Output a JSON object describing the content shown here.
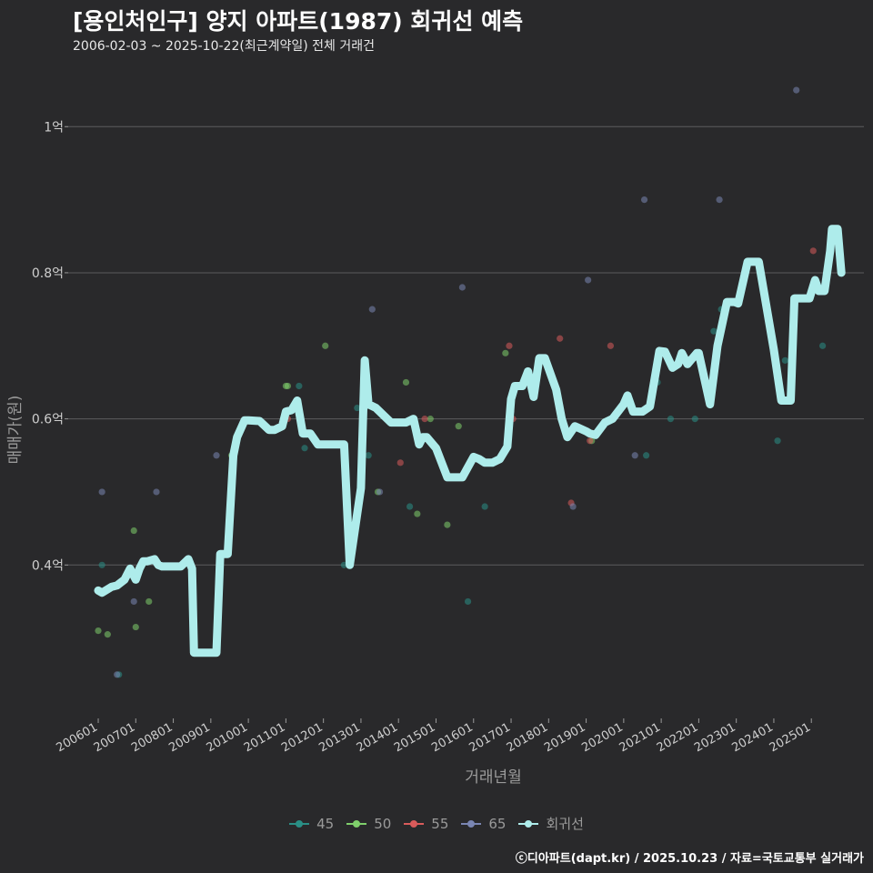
{
  "chart_data": {
    "type": "scatter",
    "title": "[용인처인구] 양지 아파트(1987) 회귀선 예측",
    "subtitle": "2006-02-03 ~ 2025-10-22(최근계약일) 전체 거래건",
    "xlabel": "거래년월",
    "ylabel": "매매가(원)",
    "ylim": [
      0.19,
      1.08
    ],
    "xlim": [
      2005.2,
      2026.4
    ],
    "y_ticks": [
      0.4,
      0.6,
      0.8,
      1.0
    ],
    "y_tick_labels": [
      "0.4억",
      "0.6억",
      "0.8억",
      "1억"
    ],
    "x_ticks": [
      2006,
      2007,
      2008,
      2009,
      2010,
      2011,
      2012,
      2013,
      2014,
      2015,
      2016,
      2017,
      2018,
      2019,
      2020,
      2021,
      2022,
      2023,
      2024,
      2025
    ],
    "x_tick_labels": [
      "200601",
      "200701",
      "200801",
      "200901",
      "201001",
      "201101",
      "201201",
      "201301",
      "201401",
      "201501",
      "201601",
      "201701",
      "201801",
      "201901",
      "202001",
      "202101",
      "202201",
      "202301",
      "202401",
      "202501"
    ],
    "series": [
      {
        "name": "45",
        "color": "#2a8f86",
        "x": [
          2006.1,
          2006.55,
          2009.6,
          2011.5,
          2011.35,
          2012.55,
          2012.9,
          2013.2,
          2014.3,
          2015.85,
          2016.3,
          2020.6,
          2020.9,
          2021.25,
          2021.9,
          2022.4,
          2022.6,
          2024.1,
          2024.3,
          2025.3,
          2025.75
        ],
        "y": [
          0.4,
          0.25,
          0.55,
          0.56,
          0.645,
          0.4,
          0.615,
          0.55,
          0.48,
          0.35,
          0.48,
          0.55,
          0.65,
          0.6,
          0.6,
          0.72,
          0.75,
          0.57,
          0.68,
          0.7,
          0.82
        ]
      },
      {
        "name": "50",
        "color": "#7fcf6b",
        "x": [
          2006.0,
          2006.25,
          2007.0,
          2006.95,
          2007.35,
          2009.55,
          2011.05,
          2011.0,
          2012.05,
          2013.45,
          2014.2,
          2014.5,
          2014.85,
          2015.3,
          2015.6,
          2016.85,
          2019.15
        ],
        "y": [
          0.31,
          0.305,
          0.315,
          0.447,
          0.35,
          0.55,
          0.645,
          0.645,
          0.7,
          0.5,
          0.65,
          0.47,
          0.6,
          0.455,
          0.59,
          0.69,
          0.57
        ]
      },
      {
        "name": "55",
        "color": "#d95b5b",
        "x": [
          2014.05,
          2014.7,
          2017.05,
          2016.95,
          2018.3,
          2018.6,
          2019.1,
          2019.65,
          2025.05,
          2011.05
        ],
        "y": [
          0.54,
          0.6,
          0.6,
          0.7,
          0.71,
          0.485,
          0.57,
          0.7,
          0.83,
          0.6
        ]
      },
      {
        "name": "65",
        "color": "#7a86b3",
        "x": [
          2006.1,
          2006.5,
          2006.95,
          2007.55,
          2009.15,
          2013.3,
          2013.5,
          2015.7,
          2017.0,
          2018.65,
          2019.05,
          2020.3,
          2020.55,
          2022.55,
          2024.6
        ],
        "y": [
          0.5,
          0.25,
          0.35,
          0.5,
          0.55,
          0.75,
          0.5,
          0.78,
          0.61,
          0.48,
          0.79,
          0.55,
          0.9,
          0.9,
          1.05
        ]
      },
      {
        "name": "회귀선",
        "color": "#aeeceb",
        "x": [
          2006.0,
          2006.1,
          2006.35,
          2006.5,
          2006.7,
          2006.85,
          2007.0,
          2007.1,
          2007.2,
          2007.3,
          2007.5,
          2007.6,
          2007.7,
          2008.0,
          2008.2,
          2008.4,
          2008.5,
          2008.55,
          2008.75,
          2009.0,
          2009.15,
          2009.25,
          2009.45,
          2009.6,
          2009.7,
          2009.9,
          2010.0,
          2010.3,
          2010.55,
          2010.7,
          2010.9,
          2011.0,
          2011.15,
          2011.3,
          2011.45,
          2011.65,
          2011.85,
          2012.0,
          2012.1,
          2012.3,
          2012.45,
          2012.55,
          2012.7,
          2013.0,
          2013.1,
          2013.2,
          2013.4,
          2013.8,
          2014.0,
          2014.2,
          2014.4,
          2014.55,
          2014.65,
          2014.75,
          2015.0,
          2015.3,
          2015.5,
          2015.7,
          2016.0,
          2016.15,
          2016.3,
          2016.5,
          2016.7,
          2016.9,
          2017.0,
          2017.1,
          2017.3,
          2017.45,
          2017.6,
          2017.75,
          2017.9,
          2018.2,
          2018.35,
          2018.5,
          2018.7,
          2019.0,
          2019.1,
          2019.25,
          2019.5,
          2019.7,
          2020.0,
          2020.1,
          2020.25,
          2020.5,
          2020.7,
          2020.95,
          2021.1,
          2021.3,
          2021.45,
          2021.55,
          2021.7,
          2021.95,
          2022.0,
          2022.3,
          2022.5,
          2022.75,
          2022.95,
          2023.05,
          2023.3,
          2023.5,
          2023.6,
          2023.75,
          2024.0,
          2024.2,
          2024.3,
          2024.45,
          2024.55,
          2024.7,
          2024.95,
          2025.1,
          2025.2,
          2025.35,
          2025.5,
          2025.55,
          2025.7,
          2025.8
        ],
        "y": [
          0.365,
          0.362,
          0.37,
          0.372,
          0.38,
          0.395,
          0.38,
          0.395,
          0.405,
          0.405,
          0.408,
          0.4,
          0.398,
          0.398,
          0.398,
          0.408,
          0.395,
          0.28,
          0.28,
          0.28,
          0.28,
          0.415,
          0.415,
          0.55,
          0.575,
          0.598,
          0.598,
          0.597,
          0.585,
          0.585,
          0.59,
          0.61,
          0.612,
          0.625,
          0.58,
          0.58,
          0.565,
          0.565,
          0.565,
          0.565,
          0.565,
          0.565,
          0.4,
          0.505,
          0.68,
          0.62,
          0.615,
          0.595,
          0.595,
          0.595,
          0.6,
          0.565,
          0.575,
          0.575,
          0.56,
          0.52,
          0.52,
          0.52,
          0.548,
          0.545,
          0.54,
          0.54,
          0.545,
          0.562,
          0.627,
          0.645,
          0.645,
          0.665,
          0.63,
          0.683,
          0.683,
          0.64,
          0.6,
          0.575,
          0.59,
          0.583,
          0.58,
          0.578,
          0.595,
          0.6,
          0.62,
          0.632,
          0.61,
          0.61,
          0.617,
          0.693,
          0.692,
          0.67,
          0.675,
          0.69,
          0.675,
          0.69,
          0.69,
          0.62,
          0.7,
          0.76,
          0.76,
          0.758,
          0.815,
          0.815,
          0.815,
          0.77,
          0.695,
          0.625,
          0.625,
          0.625,
          0.765,
          0.765,
          0.765,
          0.79,
          0.775,
          0.775,
          0.83,
          0.86,
          0.86,
          0.8
        ]
      }
    ],
    "legend_position": "bottom",
    "grid": true
  },
  "legend": {
    "items": [
      {
        "label": "45",
        "color": "#2a8f86"
      },
      {
        "label": "50",
        "color": "#7fcf6b"
      },
      {
        "label": "55",
        "color": "#d95b5b"
      },
      {
        "label": "65",
        "color": "#7a86b3"
      },
      {
        "label": "회귀선",
        "color": "#aeeceb"
      }
    ]
  },
  "footer": "ⓒ디아파트(dapt.kr) / 2025.10.23 / 자료=국토교통부 실거래가"
}
